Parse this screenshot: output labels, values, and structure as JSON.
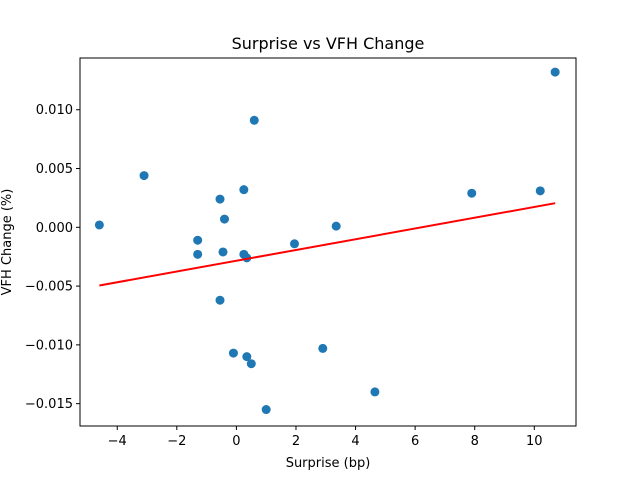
{
  "chart_data": {
    "type": "scatter",
    "title": "Surprise vs VFH Change",
    "xlabel": "Surprise (bp)",
    "ylabel": "VFH Change (%)",
    "xlim": [
      -5.25,
      11.4
    ],
    "ylim": [
      -0.0169,
      0.0144
    ],
    "xticks": [
      -4,
      -2,
      0,
      2,
      4,
      6,
      8,
      10
    ],
    "xtick_labels": [
      "−4",
      "−2",
      "0",
      "2",
      "4",
      "6",
      "8",
      "10"
    ],
    "yticks": [
      -0.015,
      -0.01,
      -0.005,
      0.0,
      0.005,
      0.01
    ],
    "ytick_labels": [
      "−0.015",
      "−0.010",
      "−0.005",
      "0.000",
      "0.005",
      "0.010"
    ],
    "grid": false,
    "points_color": "#1f77b4",
    "fit_color": "#ff0000",
    "points": [
      {
        "x": -4.6,
        "y": 0.0002
      },
      {
        "x": -3.1,
        "y": 0.0044
      },
      {
        "x": -1.3,
        "y": -0.0011
      },
      {
        "x": -1.3,
        "y": -0.0023
      },
      {
        "x": -0.55,
        "y": 0.0024
      },
      {
        "x": -0.45,
        "y": -0.0021
      },
      {
        "x": -0.4,
        "y": 0.0007
      },
      {
        "x": -0.55,
        "y": -0.0062
      },
      {
        "x": -0.1,
        "y": -0.0107
      },
      {
        "x": 0.25,
        "y": -0.0023
      },
      {
        "x": 0.25,
        "y": 0.0032
      },
      {
        "x": 0.35,
        "y": -0.0026
      },
      {
        "x": 0.35,
        "y": -0.011
      },
      {
        "x": 0.5,
        "y": -0.0116
      },
      {
        "x": 0.6,
        "y": 0.0091
      },
      {
        "x": 1.0,
        "y": -0.0155
      },
      {
        "x": 1.95,
        "y": -0.0014
      },
      {
        "x": 2.9,
        "y": -0.0103
      },
      {
        "x": 3.35,
        "y": 0.0001
      },
      {
        "x": 4.65,
        "y": -0.014
      },
      {
        "x": 7.9,
        "y": 0.0029
      },
      {
        "x": 10.2,
        "y": 0.0031
      },
      {
        "x": 10.7,
        "y": 0.0132
      }
    ],
    "fit_line": {
      "x": [
        -4.6,
        10.7
      ],
      "y": [
        -0.00495,
        0.00205
      ]
    }
  }
}
